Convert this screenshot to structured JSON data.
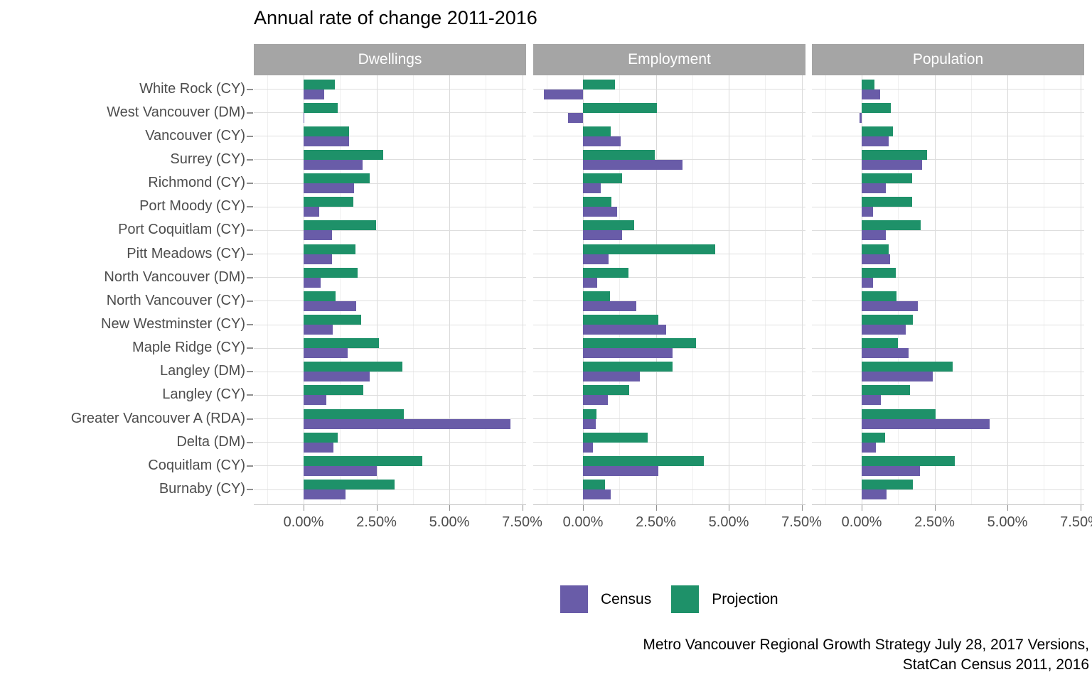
{
  "title": "Annual rate of change 2011-2016",
  "legend": {
    "census_label": "Census",
    "projection_label": "Projection"
  },
  "caption": {
    "line1": "Metro Vancouver Regional Growth Strategy July 28, 2017 Versions,",
    "line2": "StatCan Census 2011, 2016"
  },
  "chart_data": {
    "type": "bar",
    "orientation": "horizontal",
    "title": "Annual rate of change 2011-2016",
    "unit": "percent",
    "facets": [
      "Dwellings",
      "Employment",
      "Population"
    ],
    "categories": [
      "White Rock (CY)",
      "West Vancouver (DM)",
      "Vancouver (CY)",
      "Surrey (CY)",
      "Richmond (CY)",
      "Port Moody (CY)",
      "Port Coquitlam (CY)",
      "Pitt Meadows (CY)",
      "North Vancouver (DM)",
      "North Vancouver (CY)",
      "New Westminster (CY)",
      "Maple Ridge (CY)",
      "Langley (DM)",
      "Langley (CY)",
      "Greater Vancouver A (RDA)",
      "Delta (DM)",
      "Coquitlam (CY)",
      "Burnaby (CY)"
    ],
    "series": [
      {
        "name": "Census",
        "color": "#695CA8",
        "values": {
          "Dwellings": [
            0.71,
            0.02,
            1.55,
            2.02,
            1.73,
            0.54,
            0.98,
            0.98,
            0.59,
            1.81,
            0.99,
            1.51,
            2.27,
            0.77,
            7.1,
            1.02,
            2.51,
            1.43
          ],
          "Employment": [
            -1.34,
            -0.51,
            1.29,
            3.42,
            0.61,
            1.16,
            1.35,
            0.89,
            0.49,
            1.82,
            2.85,
            3.07,
            1.94,
            0.86,
            0.45,
            0.35,
            2.58,
            0.94
          ],
          "Population": [
            0.64,
            -0.07,
            0.93,
            2.07,
            0.84,
            0.38,
            0.82,
            0.97,
            0.4,
            1.93,
            1.5,
            1.62,
            2.43,
            0.67,
            4.4,
            0.49,
            1.99,
            0.86
          ]
        }
      },
      {
        "name": "Projection",
        "color": "#1E9169",
        "values": {
          "Dwellings": [
            1.08,
            1.17,
            1.56,
            2.74,
            2.27,
            1.71,
            2.48,
            1.78,
            1.85,
            1.1,
            1.98,
            2.59,
            3.4,
            2.05,
            3.44,
            1.18,
            4.07,
            3.13
          ],
          "Employment": [
            1.09,
            2.54,
            0.94,
            2.47,
            1.35,
            0.98,
            1.75,
            4.53,
            1.55,
            0.92,
            2.58,
            3.89,
            3.07,
            1.58,
            0.47,
            2.23,
            4.14,
            0.76
          ],
          "Population": [
            0.43,
            1.0,
            1.07,
            2.25,
            1.74,
            1.74,
            2.02,
            0.92,
            1.16,
            1.2,
            1.76,
            1.25,
            3.13,
            1.66,
            2.54,
            0.8,
            3.2,
            1.75
          ]
        }
      }
    ],
    "bar_order_in_group": [
      "Projection",
      "Census"
    ],
    "x_ticks": {
      "values": [
        0,
        2.5,
        5,
        7.5
      ],
      "labels": [
        "0.00%",
        "2.50%",
        "5.00%",
        "7.50%"
      ]
    },
    "x_minor_gridlines": [
      -1.25,
      1.25,
      3.75,
      6.25
    ],
    "xlim": [
      -1.7,
      7.68
    ],
    "grid": true,
    "legend_position": "bottom",
    "strip_bg_color": "#A5A5A5"
  }
}
